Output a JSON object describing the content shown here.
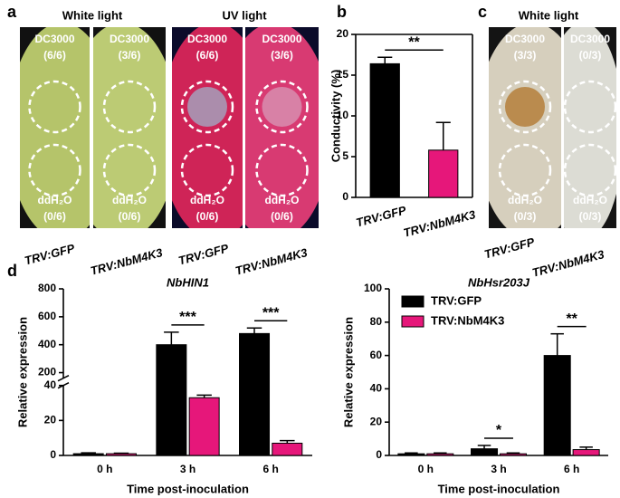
{
  "panel_labels": [
    "a",
    "b",
    "c",
    "d"
  ],
  "panel_a": {
    "headers": [
      "White light",
      "UV light"
    ],
    "leaves": [
      {
        "top": "DC3000",
        "top_count": "(6/6)",
        "bottom": "ddH₂O",
        "bottom_count": "(0/6)"
      },
      {
        "top": "DC3000",
        "top_count": "(3/6)",
        "bottom": "ddH₂O",
        "bottom_count": "(0/6)"
      },
      {
        "top": "DC3000",
        "top_count": "(6/6)",
        "bottom": "ddH₂O",
        "bottom_count": "(0/6)"
      },
      {
        "top": "DC3000",
        "top_count": "(3/6)",
        "bottom": "ddH₂O",
        "bottom_count": "(0/6)"
      }
    ],
    "labels": [
      "TRV:GFP",
      "TRV:NbM4K3",
      "TRV:GFP",
      "TRV:NbM4K3"
    ]
  },
  "panel_c": {
    "header": "White light",
    "leaves": [
      {
        "top": "DC3000",
        "top_count": "(3/3)",
        "bottom": "ddH₂O",
        "bottom_count": "(0/3)"
      },
      {
        "top": "DC3000",
        "top_count": "(0/3)",
        "bottom": "ddH₂O",
        "bottom_count": "(0/3)"
      }
    ],
    "labels": [
      "TRV:GFP",
      "TRV:NbM4K3"
    ]
  },
  "chart_data": [
    {
      "type": "bar",
      "ylabel": "Conductivity (%)",
      "categories": [
        "TRV:GFP",
        "TRV:NbM4K3"
      ],
      "values": [
        16.4,
        5.8
      ],
      "errors": [
        0.8,
        3.4
      ],
      "colors": [
        "#000000",
        "#e6177a"
      ],
      "ylim": [
        0,
        20
      ],
      "yticks": [
        0,
        5,
        10,
        15,
        20
      ],
      "significance": "**"
    },
    {
      "type": "bar",
      "title": "NbHIN1",
      "xlabel": "Time post-inoculation",
      "ylabel": "Relative expression",
      "categories": [
        "0 h",
        "3 h",
        "6 h"
      ],
      "series": [
        {
          "color": "#000000",
          "values": [
            1,
            400,
            480
          ],
          "errors": [
            0.5,
            90,
            40
          ]
        },
        {
          "color": "#e6177a",
          "values": [
            1,
            33,
            7
          ],
          "errors": [
            0.3,
            1.5,
            1.5
          ]
        }
      ],
      "ylim": [
        0,
        800
      ],
      "ybreak": [
        40,
        160
      ],
      "yticks": [
        0,
        20,
        40,
        200,
        400,
        600,
        800
      ],
      "significance": [
        null,
        "***",
        "***"
      ]
    },
    {
      "type": "bar",
      "title": "NbHsr203J",
      "xlabel": "Time post-inoculation",
      "ylabel": "Relative expression",
      "categories": [
        "0 h",
        "3 h",
        "6 h"
      ],
      "series": [
        {
          "name": "TRV:GFP",
          "color": "#000000",
          "values": [
            1,
            4,
            60
          ],
          "errors": [
            0.5,
            2,
            13
          ]
        },
        {
          "name": "TRV:NbM4K3",
          "color": "#e6177a",
          "values": [
            1,
            1,
            3.5
          ],
          "errors": [
            0.5,
            0.5,
            1.5
          ]
        }
      ],
      "ylim": [
        0,
        100
      ],
      "yticks": [
        0,
        20,
        40,
        60,
        80,
        100
      ],
      "legend": "upper left",
      "significance": [
        null,
        "*",
        "**"
      ]
    }
  ]
}
